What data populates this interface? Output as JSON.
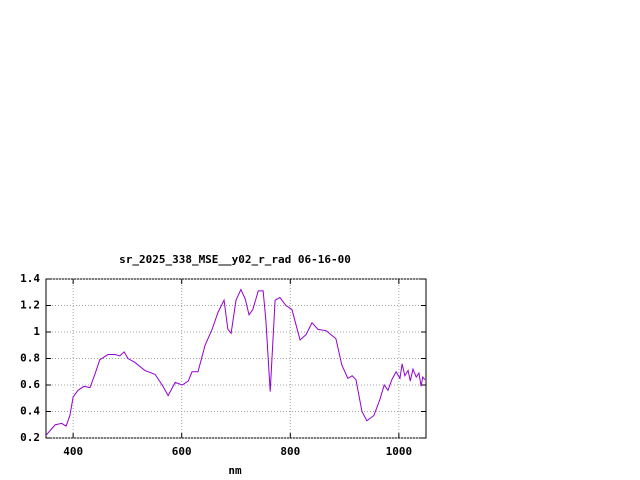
{
  "chart_data": {
    "type": "line",
    "title": "sr_2025_338_MSE__y02_r_rad 06-16-00",
    "xlabel": "nm",
    "xlim": [
      350,
      1050
    ],
    "xticks": [
      400,
      600,
      800,
      1000
    ],
    "ylim": [
      0.2,
      1.4
    ],
    "yticks": [
      0.2,
      0.4,
      0.6,
      0.8,
      1,
      1.2,
      1.4
    ],
    "grid": true,
    "series": [
      {
        "color": "#9400d3",
        "x": [
          350,
          367,
          379,
          387,
          394,
          400,
          409,
          420,
          431,
          440,
          449,
          464,
          477,
          486,
          494,
          501,
          514,
          532,
          551,
          564,
          575,
          588,
          601,
          612,
          619,
          630,
          643,
          656,
          667,
          678,
          685,
          691,
          700,
          709,
          717,
          724,
          731,
          741,
          750,
          755,
          763,
          772,
          781,
          792,
          803,
          818,
          829,
          840,
          851,
          866,
          884,
          895,
          906,
          914,
          921,
          932,
          941,
          954,
          965,
          973,
          980,
          987,
          995,
          1002,
          1006,
          1011,
          1017,
          1021,
          1026,
          1032,
          1037,
          1041,
          1044,
          1048
        ],
        "values": [
          0.22,
          0.3,
          0.31,
          0.29,
          0.37,
          0.51,
          0.56,
          0.59,
          0.58,
          0.68,
          0.79,
          0.83,
          0.83,
          0.82,
          0.85,
          0.8,
          0.77,
          0.71,
          0.68,
          0.6,
          0.52,
          0.62,
          0.6,
          0.63,
          0.7,
          0.7,
          0.9,
          1.02,
          1.15,
          1.24,
          1.02,
          0.99,
          1.24,
          1.32,
          1.25,
          1.13,
          1.17,
          1.31,
          1.31,
          1.09,
          0.55,
          1.24,
          1.26,
          1.2,
          1.17,
          0.94,
          0.98,
          1.07,
          1.02,
          1.01,
          0.95,
          0.75,
          0.65,
          0.67,
          0.64,
          0.4,
          0.33,
          0.37,
          0.49,
          0.6,
          0.56,
          0.64,
          0.7,
          0.65,
          0.76,
          0.67,
          0.71,
          0.63,
          0.72,
          0.66,
          0.69,
          0.59,
          0.66,
          0.64
        ]
      }
    ]
  }
}
